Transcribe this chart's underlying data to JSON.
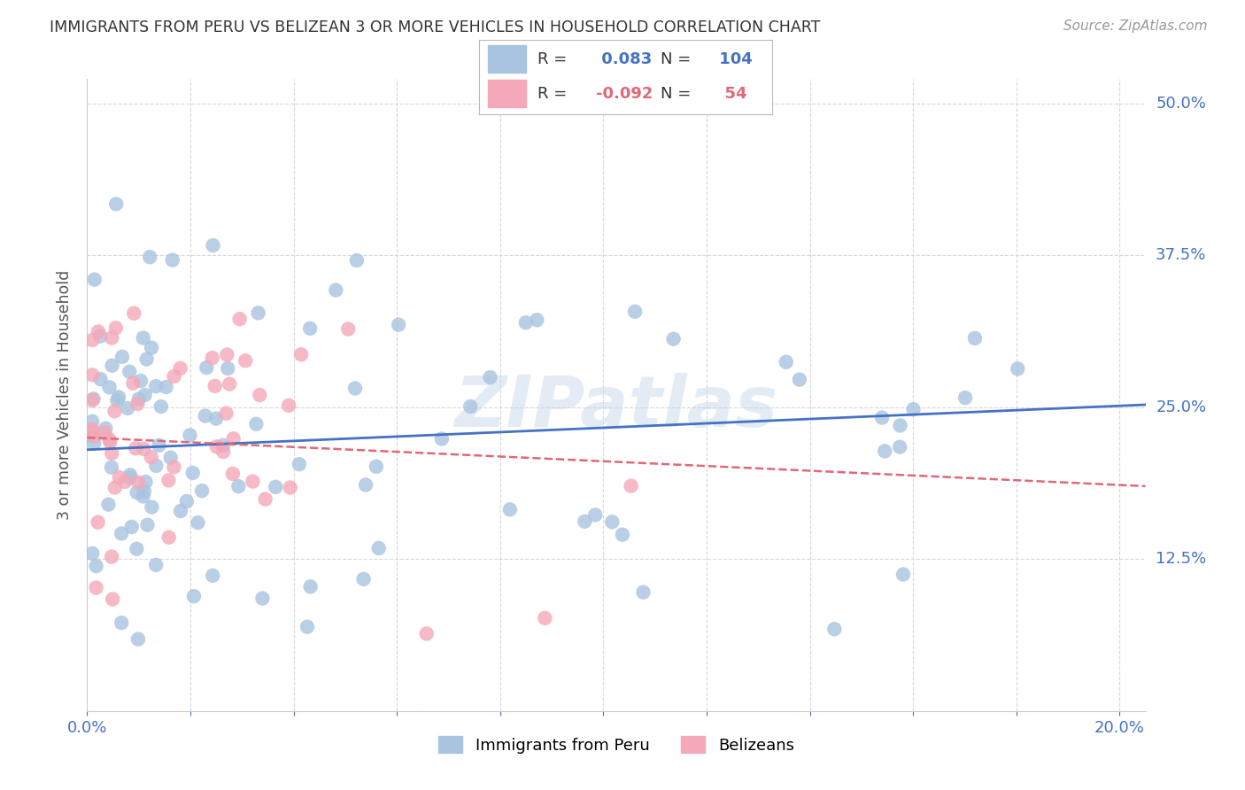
{
  "title": "IMMIGRANTS FROM PERU VS BELIZEAN 3 OR MORE VEHICLES IN HOUSEHOLD CORRELATION CHART",
  "source": "Source: ZipAtlas.com",
  "ylabel": "3 or more Vehicles in Household",
  "ylim": [
    0.0,
    0.52
  ],
  "xlim": [
    0.0,
    0.205
  ],
  "yticks": [
    0.0,
    0.125,
    0.25,
    0.375,
    0.5
  ],
  "xtick_count": 11,
  "peru_R": 0.083,
  "peru_N": 104,
  "belize_R": -0.092,
  "belize_N": 54,
  "peru_color": "#a8c4e0",
  "belize_color": "#f4a8b8",
  "peru_line_color": "#4472c4",
  "belize_line_color": "#e06878",
  "legend_label_peru": "Immigrants from Peru",
  "legend_label_belize": "Belizeans",
  "watermark": "ZIPatlas",
  "background_color": "#ffffff",
  "grid_color": "#d8d8d8",
  "title_color": "#333333",
  "axis_label_color": "#4472c4",
  "peru_line_start_y": 0.215,
  "peru_line_end_y": 0.252,
  "belize_line_start_y": 0.225,
  "belize_line_end_y": 0.185
}
